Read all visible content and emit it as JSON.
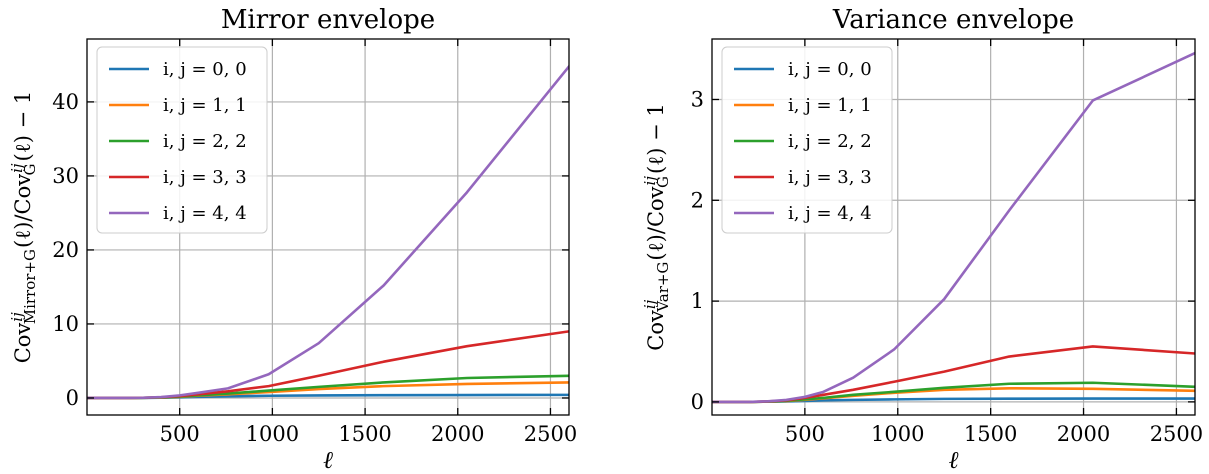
{
  "chart_data": [
    {
      "type": "line",
      "title": "Mirror envelope",
      "xlabel": "ℓ",
      "ylabel": "Cov^{ij}_{Mirror+G}(ℓ)/Cov^{ij}_{G}(ℓ) − 1",
      "xlim": [
        0,
        2600
      ],
      "ylim": [
        -2.3,
        48.5
      ],
      "xticks": [
        500,
        1000,
        1500,
        2000,
        2500
      ],
      "yticks": [
        0,
        10,
        20,
        30,
        40
      ],
      "grid": true,
      "legend_position": "top-left",
      "x": [
        0,
        100,
        200,
        300,
        400,
        500,
        600,
        760,
        980,
        1250,
        1600,
        2050,
        2600
      ],
      "series": [
        {
          "name": "i, j = 0, 0",
          "color": "#1f77b4",
          "values": [
            0,
            0,
            0,
            0.01,
            0.03,
            0.08,
            0.15,
            0.23,
            0.3,
            0.35,
            0.38,
            0.4,
            0.42
          ]
        },
        {
          "name": "i, j = 1, 1",
          "color": "#ff7f0e",
          "values": [
            0,
            0,
            0,
            0.02,
            0.06,
            0.15,
            0.3,
            0.5,
            0.8,
            1.2,
            1.6,
            1.9,
            2.1
          ]
        },
        {
          "name": "i, j = 2, 2",
          "color": "#2ca02c",
          "values": [
            0,
            0,
            0,
            0.02,
            0.07,
            0.18,
            0.35,
            0.6,
            1.0,
            1.5,
            2.1,
            2.7,
            3.0
          ]
        },
        {
          "name": "i, j = 3, 3",
          "color": "#d62728",
          "values": [
            0,
            0,
            0,
            0.03,
            0.1,
            0.25,
            0.5,
            0.9,
            1.6,
            3.0,
            4.9,
            7.0,
            9.0
          ]
        },
        {
          "name": "i, j = 4, 4",
          "color": "#9467bd",
          "values": [
            0,
            0,
            0,
            0.03,
            0.12,
            0.35,
            0.7,
            1.3,
            3.2,
            7.4,
            15.2,
            27.8,
            44.8
          ]
        }
      ]
    },
    {
      "type": "line",
      "title": "Variance envelope",
      "xlabel": "ℓ",
      "ylabel": "Cov^{ij}_{Var+G}(ℓ)/Cov^{ij}_{G}(ℓ) − 1",
      "xlim": [
        0,
        2600
      ],
      "ylim": [
        -0.13,
        3.6
      ],
      "xticks": [
        500,
        1000,
        1500,
        2000,
        2500
      ],
      "yticks": [
        0,
        1,
        2,
        3
      ],
      "grid": true,
      "legend_position": "top-left",
      "x": [
        0,
        100,
        200,
        300,
        400,
        500,
        600,
        760,
        980,
        1250,
        1600,
        2050,
        2600
      ],
      "series": [
        {
          "name": "i, j = 0, 0",
          "color": "#1f77b4",
          "values": [
            0,
            0,
            0,
            0.002,
            0.005,
            0.01,
            0.015,
            0.02,
            0.025,
            0.03,
            0.032,
            0.033,
            0.033
          ]
        },
        {
          "name": "i, j = 1, 1",
          "color": "#ff7f0e",
          "values": [
            0,
            0,
            0,
            0.003,
            0.008,
            0.02,
            0.035,
            0.06,
            0.09,
            0.12,
            0.135,
            0.13,
            0.11
          ]
        },
        {
          "name": "i, j = 2, 2",
          "color": "#2ca02c",
          "values": [
            0,
            0,
            0,
            0.003,
            0.01,
            0.025,
            0.04,
            0.07,
            0.1,
            0.14,
            0.18,
            0.19,
            0.15
          ]
        },
        {
          "name": "i, j = 3, 3",
          "color": "#d62728",
          "values": [
            0,
            0,
            0,
            0.005,
            0.015,
            0.04,
            0.07,
            0.12,
            0.2,
            0.3,
            0.45,
            0.55,
            0.48
          ]
        },
        {
          "name": "i, j = 4, 4",
          "color": "#9467bd",
          "values": [
            0,
            0,
            0,
            0.006,
            0.02,
            0.05,
            0.1,
            0.24,
            0.52,
            1.02,
            1.9,
            2.99,
            3.46
          ]
        }
      ]
    }
  ]
}
